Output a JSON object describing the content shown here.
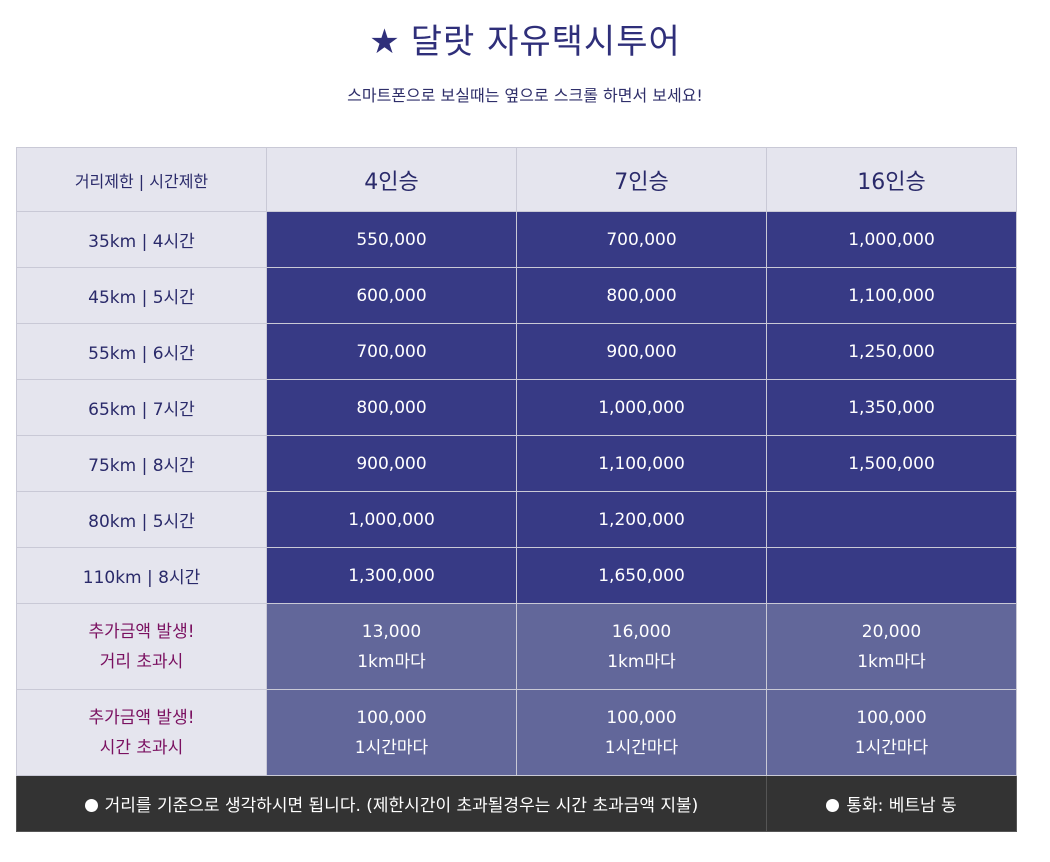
{
  "header": {
    "star": "★",
    "title": "달랏 자유택시투어",
    "subtitle": "스마트폰으로 보실때는 옆으로 스크롤 하면서 보세요!"
  },
  "table": {
    "corner_label": "거리제한 | 시간제한",
    "vehicles": [
      "4인승",
      "7인승",
      "16인승"
    ],
    "rows": [
      {
        "label": "35km | 4시간",
        "prices": [
          "550,000",
          "700,000",
          "1,000,000"
        ]
      },
      {
        "label": "45km | 5시간",
        "prices": [
          "600,000",
          "800,000",
          "1,100,000"
        ]
      },
      {
        "label": "55km | 6시간",
        "prices": [
          "700,000",
          "900,000",
          "1,250,000"
        ]
      },
      {
        "label": "65km | 7시간",
        "prices": [
          "800,000",
          "1,000,000",
          "1,350,000"
        ]
      },
      {
        "label": "75km | 8시간",
        "prices": [
          "900,000",
          "1,100,000",
          "1,500,000"
        ]
      },
      {
        "label": "80km | 5시간",
        "prices": [
          "1,000,000",
          "1,200,000",
          ""
        ]
      },
      {
        "label": "110km | 8시간",
        "prices": [
          "1,300,000",
          "1,650,000",
          ""
        ]
      }
    ],
    "extra_distance": {
      "label_line1": "추가금액 발생!",
      "label_line2": "거리 초과시",
      "cells": [
        {
          "amount": "13,000",
          "unit": "1km마다"
        },
        {
          "amount": "16,000",
          "unit": "1km마다"
        },
        {
          "amount": "20,000",
          "unit": "1km마다"
        }
      ]
    },
    "extra_time": {
      "label_line1": "추가금액 발생!",
      "label_line2": "시간 초과시",
      "cells": [
        {
          "amount": "100,000",
          "unit": "1시간마다"
        },
        {
          "amount": "100,000",
          "unit": "1시간마다"
        },
        {
          "amount": "100,000",
          "unit": "1시간마다"
        }
      ]
    },
    "footer": {
      "note": "거리를 기준으로 생각하시면 됩니다. (제한시간이 초과될경우는 시간 초과금액 지불)",
      "currency": "통화: 베트남 동"
    }
  },
  "colors": {
    "title": "#2f2f7a",
    "header_bg": "#e5e5ee",
    "price_bg": "#373a85",
    "extra_bg": "#62679a",
    "extra_label": "#7a1060",
    "footer_bg": "#333333"
  }
}
